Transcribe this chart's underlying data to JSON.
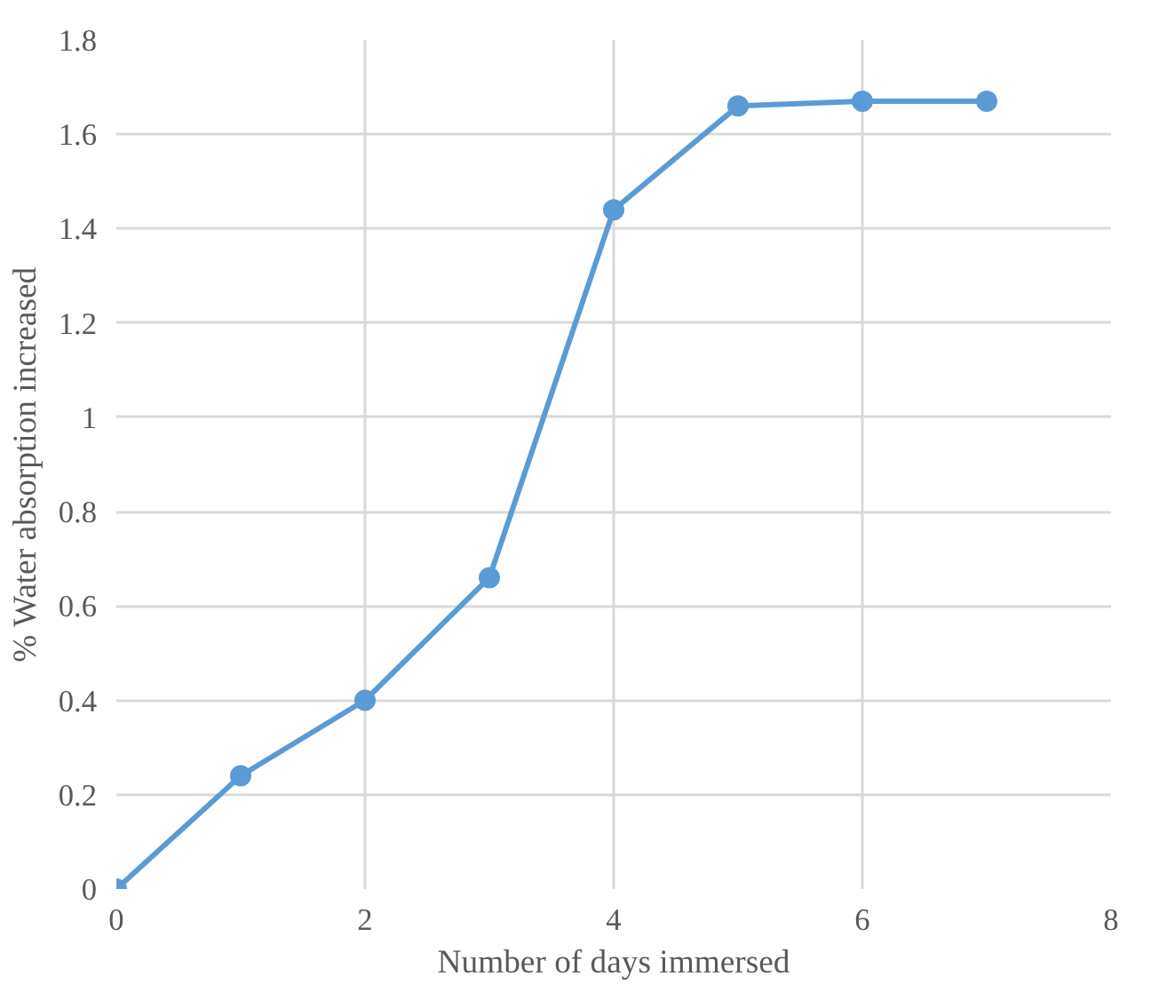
{
  "chart_data": {
    "type": "line",
    "xlabel": "Number of days immersed",
    "ylabel": "% Water absorption increased",
    "x": [
      0,
      1,
      2,
      3,
      4,
      5,
      6,
      7
    ],
    "series": [
      {
        "color": "#5b9bd5",
        "values": [
          0,
          0.24,
          0.4,
          0.66,
          1.44,
          1.66,
          1.67,
          1.67
        ]
      }
    ],
    "xlim": [
      0,
      8
    ],
    "xticks": [
      0,
      2,
      4,
      6,
      8
    ],
    "ylim": [
      0,
      1.8
    ],
    "yticks": [
      0,
      {
        "value": 0.2,
        "label": "0.2"
      },
      {
        "value": 0.4,
        "label": "0.4"
      },
      {
        "value": 0.6,
        "label": "0.6"
      },
      {
        "value": 0.8,
        "label": "0.8"
      },
      1,
      {
        "value": 1.2,
        "label": "1.2"
      },
      {
        "value": 1.4,
        "label": "1.4"
      },
      {
        "value": 1.6,
        "label": "1.6"
      },
      {
        "value": 1.8,
        "label": "1.8"
      }
    ],
    "grid": true,
    "marker": "circle",
    "line_style": "solid"
  }
}
